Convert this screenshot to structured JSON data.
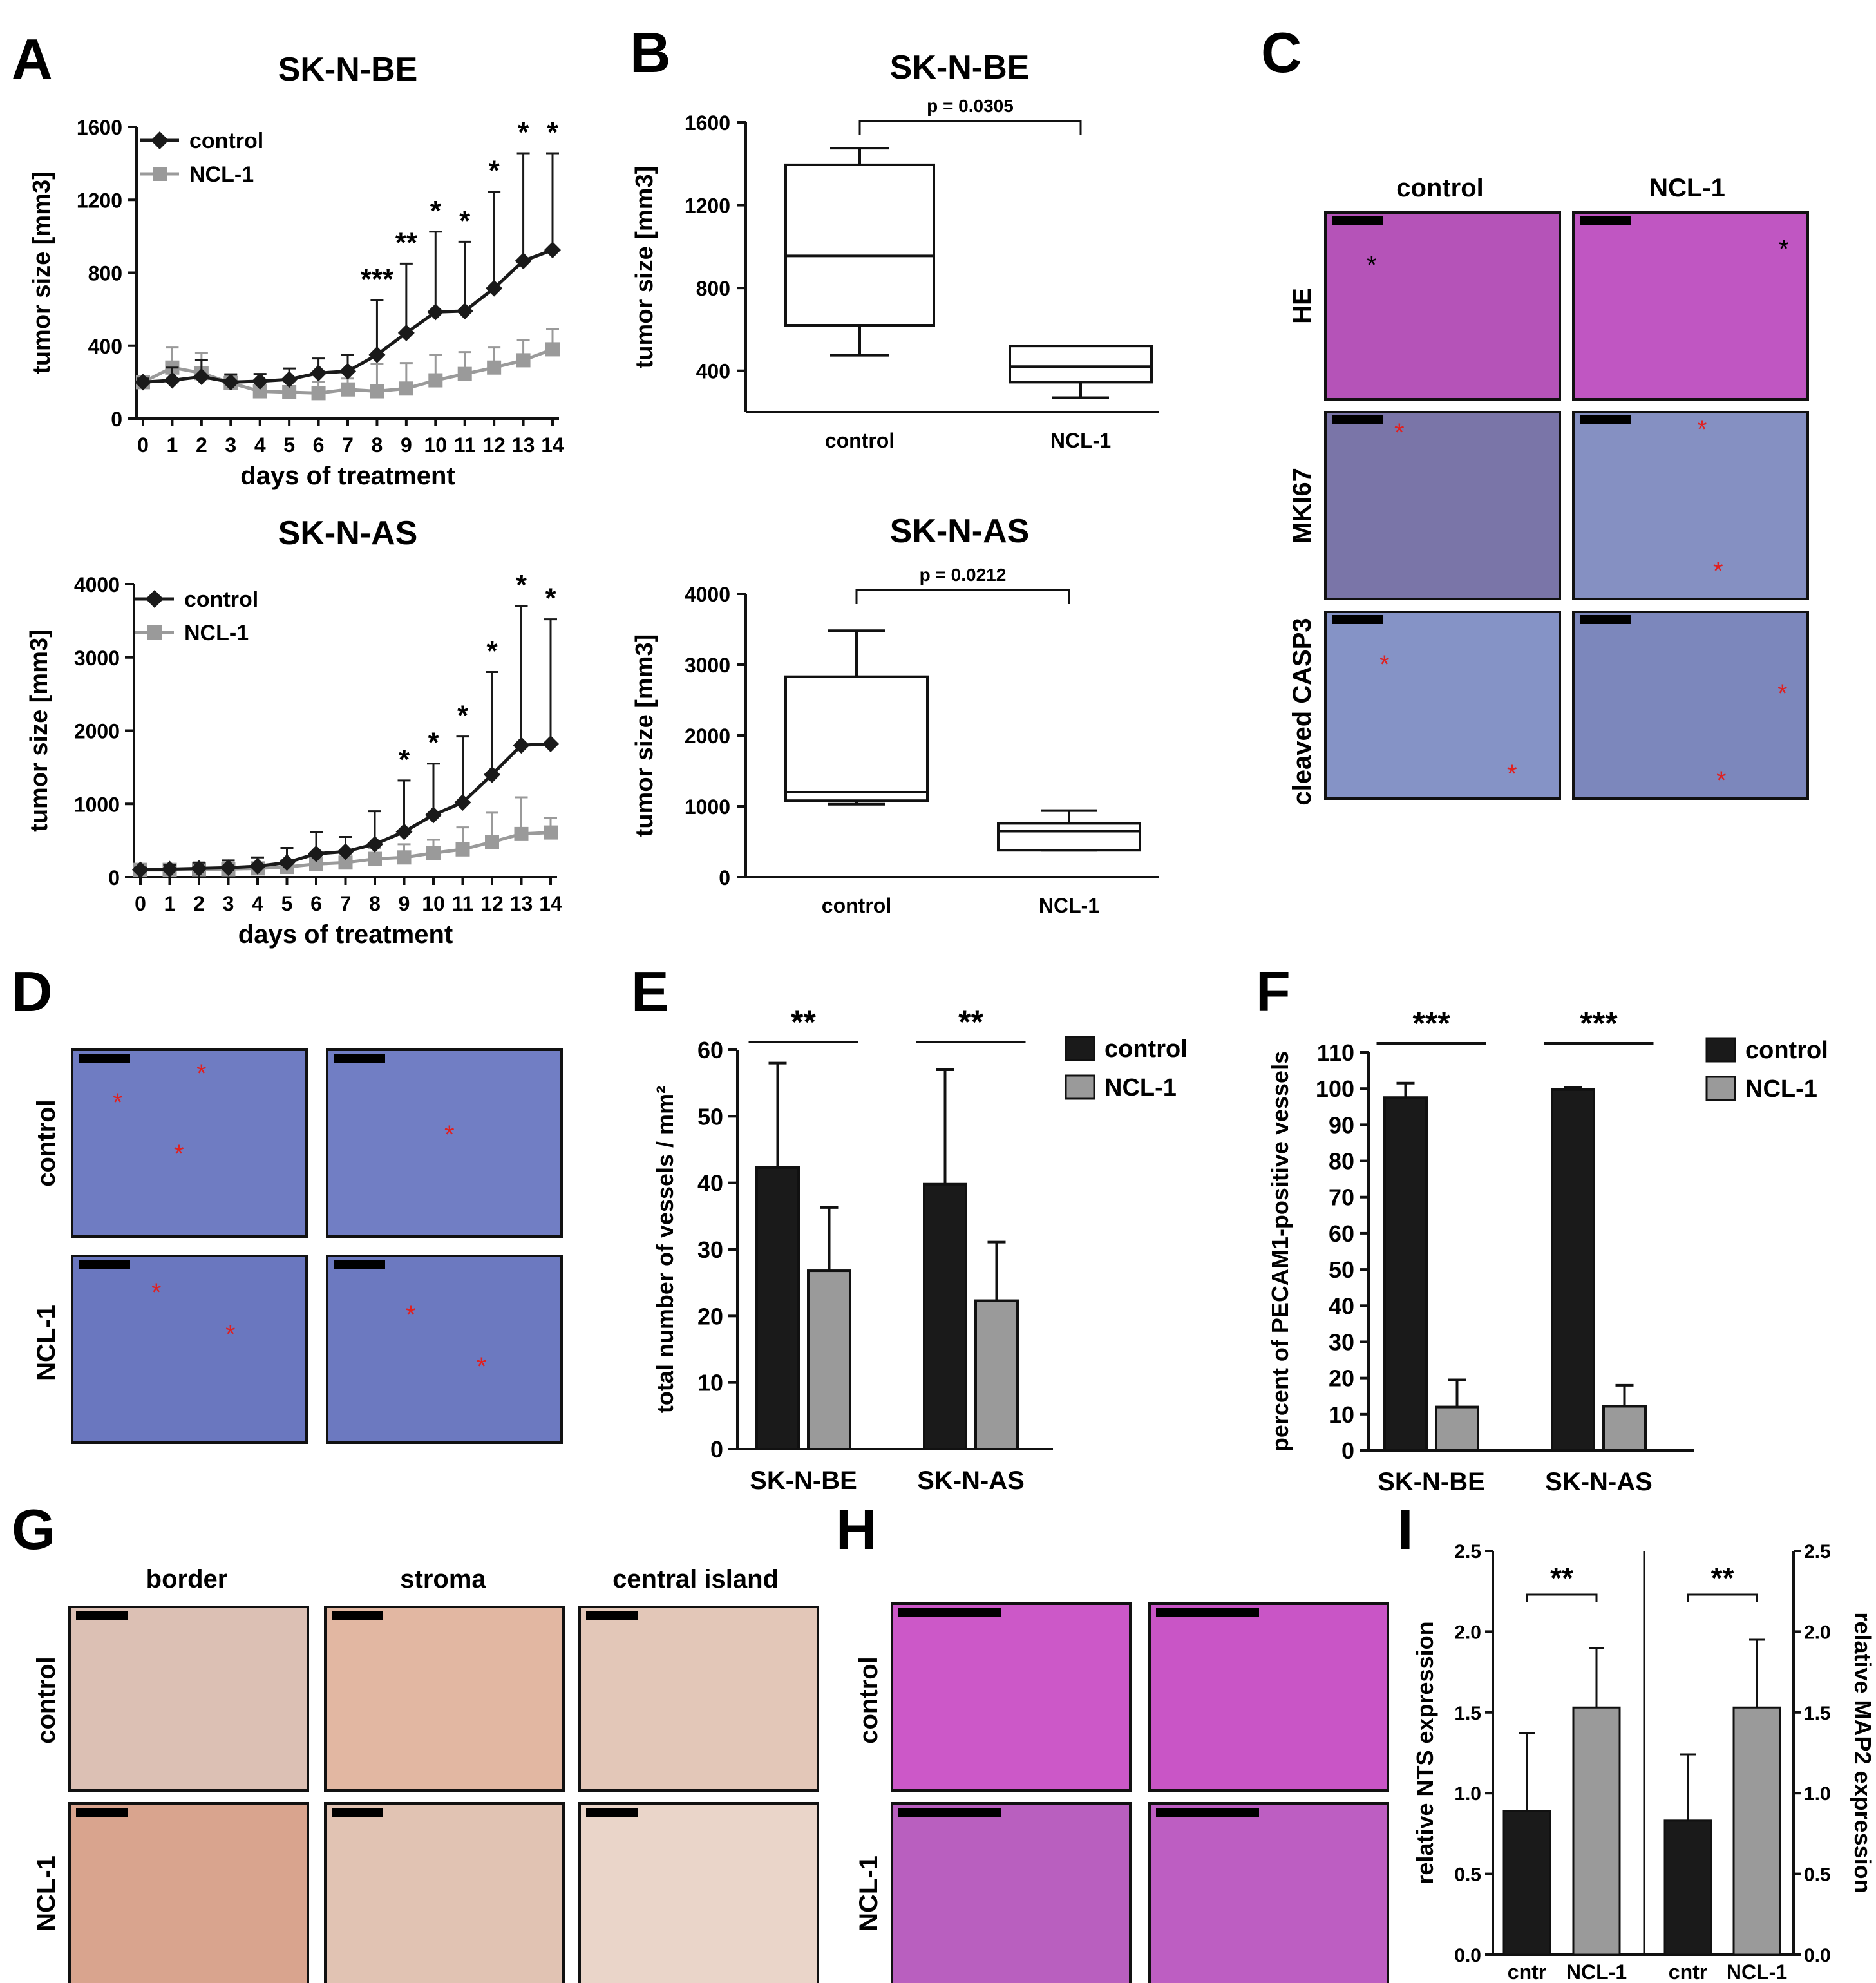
{
  "panels": {
    "A": {
      "letter": "A",
      "top": {
        "title": "SK-N-BE",
        "xlabel": "days of treatment",
        "ylabel": "tumor size [mm3]",
        "legend": [
          "control",
          "NCL-1"
        ],
        "x_ticks": [
          "0",
          "1",
          "2",
          "3",
          "4",
          "5",
          "6",
          "7",
          "8",
          "9",
          "10",
          "11",
          "12",
          "13",
          "14"
        ],
        "y_ticks": [
          "0",
          "400",
          "800",
          "1200",
          "1600"
        ],
        "sig": [
          {
            "x": 8,
            "label": "***"
          },
          {
            "x": 9,
            "label": "**"
          },
          {
            "x": 10,
            "label": "*"
          },
          {
            "x": 11,
            "label": "*"
          },
          {
            "x": 12,
            "label": "*"
          },
          {
            "x": 13,
            "label": "*"
          },
          {
            "x": 14,
            "label": "*"
          }
        ]
      },
      "bottom": {
        "title": "SK-N-AS",
        "xlabel": "days of treatment",
        "ylabel": "tumor size [mm3]",
        "legend": [
          "control",
          "NCL-1"
        ],
        "x_ticks": [
          "0",
          "1",
          "2",
          "3",
          "4",
          "5",
          "6",
          "7",
          "8",
          "9",
          "10",
          "11",
          "12",
          "13",
          "14"
        ],
        "y_ticks": [
          "0",
          "1000",
          "2000",
          "3000",
          "4000"
        ],
        "sig": [
          {
            "x": 9,
            "label": "*"
          },
          {
            "x": 10,
            "label": "*"
          },
          {
            "x": 11,
            "label": "*"
          },
          {
            "x": 12,
            "label": "*"
          },
          {
            "x": 13,
            "label": "*"
          },
          {
            "x": 14,
            "label": "*"
          }
        ]
      }
    },
    "B": {
      "letter": "B",
      "top": {
        "title": "SK-N-BE",
        "pvalue": "p = 0.0305",
        "ylabel": "tumor size [mm3]",
        "categories": [
          "control",
          "NCL-1"
        ],
        "y_ticks": [
          "400",
          "800",
          "1200",
          "1600"
        ]
      },
      "bottom": {
        "title": "SK-N-AS",
        "pvalue": "p = 0.0212",
        "ylabel": "tumor size [mm3]",
        "categories": [
          "control",
          "NCL-1"
        ],
        "y_ticks": [
          "0",
          "1000",
          "2000",
          "3000",
          "4000"
        ]
      }
    },
    "C": {
      "letter": "C",
      "columns": [
        "control",
        "NCL-1"
      ],
      "rows": [
        "HE",
        "MKI67",
        "cleaved CASP3"
      ]
    },
    "D": {
      "letter": "D",
      "rows": [
        "control",
        "NCL-1"
      ]
    },
    "E": {
      "letter": "E",
      "ylabel": "total number of vessels / mm²",
      "categories": [
        "SK-N-BE",
        "SK-N-AS"
      ],
      "legend": [
        "control",
        "NCL-1"
      ],
      "sig": [
        "**",
        "**"
      ],
      "y_ticks": [
        "0",
        "10",
        "20",
        "30",
        "40",
        "50",
        "60"
      ]
    },
    "F": {
      "letter": "F",
      "ylabel": "percent of PECAM1-positive vessels",
      "categories": [
        "SK-N-BE",
        "SK-N-AS"
      ],
      "legend": [
        "control",
        "NCL-1"
      ],
      "sig": [
        "***",
        "***"
      ],
      "y_ticks": [
        "0",
        "10",
        "20",
        "30",
        "40",
        "50",
        "60",
        "70",
        "80",
        "90",
        "100",
        "110"
      ]
    },
    "G": {
      "letter": "G",
      "columns": [
        "border",
        "stroma",
        "central island"
      ],
      "rows": [
        "control",
        "NCL-1"
      ]
    },
    "H": {
      "letter": "H",
      "rows": [
        "control",
        "NCL-1"
      ]
    },
    "I": {
      "letter": "I",
      "ylabel_left": "relative NTS expression",
      "ylabel_right": "relative MAP2 expression",
      "categories": [
        "cntr",
        "NCL-1",
        "cntr",
        "NCL-1"
      ],
      "sig": [
        "**",
        "**"
      ],
      "y_ticks": [
        "0.0",
        "0.5",
        "1.0",
        "1.5",
        "2.0",
        "2.5"
      ]
    }
  },
  "colors": {
    "control": "#1a1a1a",
    "ncl1": "#9a9a9a",
    "he_pink": "#c24fbf",
    "ihc_blue": "#6f79b8",
    "red_stain": "#d98a70"
  },
  "chart_data": [
    {
      "type": "line",
      "id": "A-top",
      "title": "SK-N-BE",
      "xlabel": "days of treatment",
      "ylabel": "tumor size [mm3]",
      "ylim": [
        0,
        1600
      ],
      "x": [
        0,
        1,
        2,
        3,
        4,
        5,
        6,
        7,
        8,
        9,
        10,
        11,
        12,
        13,
        14
      ],
      "series": [
        {
          "name": "control",
          "values": [
            200,
            210,
            230,
            200,
            205,
            215,
            250,
            260,
            350,
            470,
            585,
            590,
            715,
            865,
            925
          ],
          "err": [
            20,
            70,
            90,
            40,
            40,
            60,
            80,
            90,
            300,
            380,
            440,
            380,
            530,
            590,
            530
          ]
        },
        {
          "name": "NCL-1",
          "values": [
            200,
            280,
            250,
            195,
            150,
            145,
            140,
            160,
            150,
            165,
            210,
            245,
            280,
            320,
            380
          ],
          "err": [
            20,
            110,
            110,
            50,
            50,
            60,
            60,
            60,
            150,
            140,
            140,
            120,
            110,
            110,
            110
          ]
        }
      ]
    },
    {
      "type": "line",
      "id": "A-bottom",
      "title": "SK-N-AS",
      "xlabel": "days of treatment",
      "ylabel": "tumor size [mm3]",
      "ylim": [
        0,
        4000
      ],
      "x": [
        0,
        1,
        2,
        3,
        4,
        5,
        6,
        7,
        8,
        9,
        10,
        11,
        12,
        13,
        14
      ],
      "series": [
        {
          "name": "control",
          "values": [
            100,
            110,
            120,
            130,
            150,
            200,
            320,
            350,
            450,
            620,
            850,
            1020,
            1400,
            1800,
            1820
          ],
          "err": [
            30,
            60,
            80,
            100,
            120,
            200,
            300,
            200,
            450,
            700,
            700,
            900,
            1400,
            1900,
            1700
          ]
        },
        {
          "name": "NCL-1",
          "values": [
            100,
            100,
            110,
            110,
            120,
            140,
            180,
            200,
            250,
            270,
            330,
            380,
            480,
            590,
            610
          ],
          "err": [
            30,
            60,
            80,
            80,
            80,
            90,
            120,
            120,
            150,
            180,
            180,
            300,
            400,
            500,
            200
          ]
        }
      ]
    },
    {
      "type": "box",
      "id": "B-top",
      "title": "SK-N-BE",
      "ylabel": "tumor size [mm3]",
      "ylim": [
        200,
        1600
      ],
      "boxes": [
        {
          "category": "control",
          "min": 475,
          "q1": 620,
          "median": 955,
          "q3": 1395,
          "max": 1475
        },
        {
          "category": "NCL-1",
          "min": 270,
          "q1": 345,
          "median": 420,
          "q3": 520,
          "max": 520
        }
      ]
    },
    {
      "type": "box",
      "id": "B-bottom",
      "title": "SK-N-AS",
      "ylabel": "tumor size [mm3]",
      "ylim": [
        0,
        4000
      ],
      "boxes": [
        {
          "category": "control",
          "min": 1030,
          "q1": 1080,
          "median": 1200,
          "q3": 2830,
          "max": 3480
        },
        {
          "category": "NCL-1",
          "min": 380,
          "q1": 380,
          "median": 650,
          "q3": 760,
          "max": 940
        }
      ]
    },
    {
      "type": "bar",
      "id": "E",
      "ylabel": "total number of vessels / mm²",
      "ylim": [
        0,
        60
      ],
      "categories": [
        "SK-N-BE",
        "SK-N-AS"
      ],
      "series": [
        {
          "name": "control",
          "values": [
            42.3,
            39.8
          ],
          "err": [
            15.7,
            17.2
          ]
        },
        {
          "name": "NCL-1",
          "values": [
            26.8,
            22.3
          ],
          "err": [
            9.5,
            8.8
          ]
        }
      ]
    },
    {
      "type": "bar",
      "id": "F",
      "ylabel": "percent of PECAM1-positive vessels",
      "ylim": [
        0,
        110
      ],
      "categories": [
        "SK-N-BE",
        "SK-N-AS"
      ],
      "series": [
        {
          "name": "control",
          "values": [
            97.5,
            99.7
          ],
          "err": [
            4,
            0.5
          ]
        },
        {
          "name": "NCL-1",
          "values": [
            12,
            12.2
          ],
          "err": [
            7.5,
            5.8
          ]
        }
      ]
    },
    {
      "type": "bar",
      "id": "I",
      "ylim": [
        0,
        2.5
      ],
      "categories": [
        "cntr",
        "NCL-1",
        "cntr",
        "NCL-1"
      ],
      "values": [
        0.89,
        1.53,
        0.83,
        1.53
      ],
      "err": [
        0.48,
        0.37,
        0.41,
        0.42
      ],
      "colors": [
        "#1a1a1a",
        "#9a9a9a",
        "#1a1a1a",
        "#9a9a9a"
      ]
    }
  ]
}
